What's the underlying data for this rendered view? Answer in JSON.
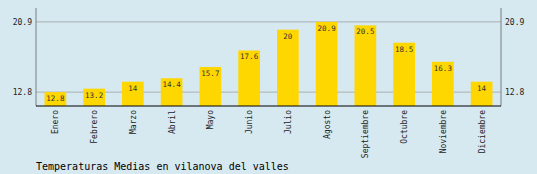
{
  "chart_data": {
    "type": "bar",
    "title": "Temperaturas Medias en vilanova del valles",
    "categories": [
      "Enero",
      "Febrero",
      "Marzo",
      "Abril",
      "Mayo",
      "Junio",
      "Julio",
      "Agosto",
      "Septiembre",
      "Octubre",
      "Noviembre",
      "Diciembre"
    ],
    "values": [
      12.8,
      13.2,
      14.0,
      14.4,
      15.7,
      17.6,
      20.0,
      20.9,
      20.5,
      18.5,
      16.3,
      14.0
    ],
    "color": "#FFD700",
    "ylim": [
      11.2,
      22.5
    ],
    "yticks": [
      12.8,
      20.9
    ],
    "y2lim": [
      11.2,
      22.5
    ],
    "y2ticks": [
      12.8,
      20.9
    ],
    "grid": true,
    "data_labels": true
  }
}
